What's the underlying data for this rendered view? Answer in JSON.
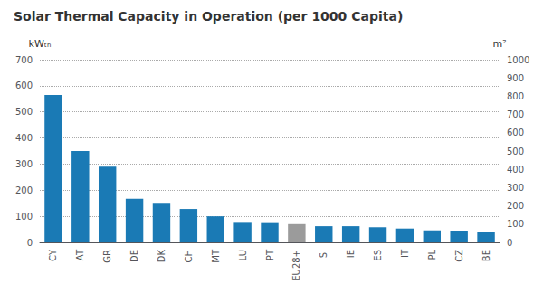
{
  "chart_data": {
    "type": "bar",
    "title": "Solar Thermal Capacity in Operation (per 1000 Capita)",
    "ylabel": "kWₜₕ",
    "y2label": "m²",
    "categories": [
      "CY",
      "AT",
      "GR",
      "DE",
      "DK",
      "CH",
      "MT",
      "LU",
      "PT",
      "EU28+",
      "SI",
      "IE",
      "ES",
      "IT",
      "PL",
      "CZ",
      "BE"
    ],
    "values": [
      565,
      350,
      290,
      167,
      152,
      128,
      100,
      75,
      74,
      70,
      62,
      62,
      58,
      53,
      46,
      45,
      40
    ],
    "colors": [
      "#1a7ab5",
      "#1a7ab5",
      "#1a7ab5",
      "#1a7ab5",
      "#1a7ab5",
      "#1a7ab5",
      "#1a7ab5",
      "#1a7ab5",
      "#1a7ab5",
      "#9b9b9b",
      "#1a7ab5",
      "#1a7ab5",
      "#1a7ab5",
      "#1a7ab5",
      "#1a7ab5",
      "#1a7ab5",
      "#1a7ab5"
    ],
    "ylim": [
      0,
      700
    ],
    "yticks": [
      0,
      100,
      200,
      300,
      400,
      500,
      600,
      700
    ],
    "y2lim": [
      0,
      1000
    ],
    "y2ticks": [
      0,
      100,
      200,
      300,
      400,
      500,
      600,
      700,
      800,
      900,
      1000
    ],
    "grid": true
  }
}
